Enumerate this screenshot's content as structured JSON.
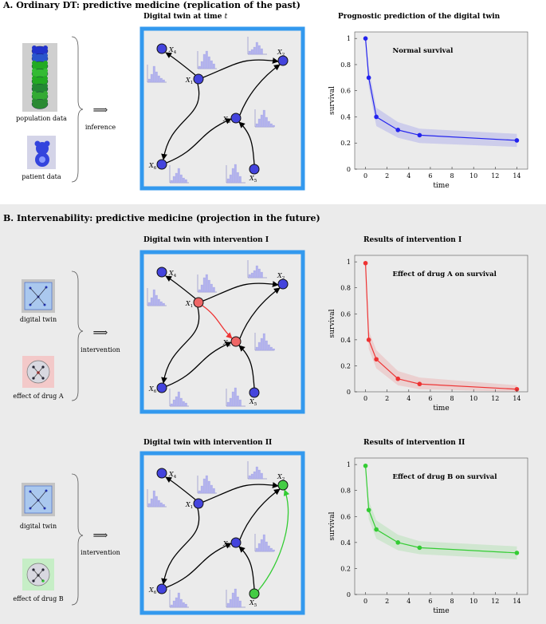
{
  "colors": {
    "panel_border": "#3399ee",
    "node_blue": "#4444dd",
    "node_red": "#ee6666",
    "node_green": "#44cc44",
    "edge_red": "#ee3333",
    "edge_green": "#33cc33",
    "line_blue": "#2222ee",
    "line_red": "#ee3333",
    "line_green": "#33cc33",
    "section_bg": "#ebebeb"
  },
  "sectionA": {
    "heading": "A. Ordinary DT: predictive medicine (replication of the past)",
    "left": {
      "population_label": "population data",
      "patient_label": "patient data",
      "arrow": "⟹",
      "action_label": "inference"
    },
    "network_title": "Digital twin at time ",
    "network_title_var": "t",
    "chart_title": "Prognostic prediction of the digital twin"
  },
  "sectionB": {
    "heading": "B. Intervenability: predictive medicine (projection in the future)",
    "row1": {
      "left": {
        "twin_label": "digital twin",
        "effect_label": "effect of drug A",
        "arrow": "⟹",
        "action_label": "intervention"
      },
      "network_title": "Digital twin with intervention I",
      "chart_title": "Results of intervention I"
    },
    "row2": {
      "left": {
        "twin_label": "digital twin",
        "effect_label": "effect of drug B",
        "arrow": "⟹",
        "action_label": "intervention"
      },
      "network_title": "Digital twin with intervention II",
      "chart_title": "Results of intervention II"
    }
  },
  "network": {
    "nodes": [
      {
        "id": "X1",
        "label": "X",
        "sub": "1"
      },
      {
        "id": "X2",
        "label": "X",
        "sub": "2"
      },
      {
        "id": "X3",
        "label": "X",
        "sub": "3"
      },
      {
        "id": "X4",
        "label": "X",
        "sub": "4"
      },
      {
        "id": "X5",
        "label": "X",
        "sub": "5"
      },
      {
        "id": "X6",
        "label": "X",
        "sub": "6"
      }
    ]
  },
  "chart_data": [
    {
      "type": "line",
      "title": "Normal survival",
      "xlabel": "time",
      "ylabel": "survival",
      "x": [
        0,
        0.3,
        1,
        3,
        5,
        14
      ],
      "values": [
        1.0,
        0.7,
        0.4,
        0.3,
        0.26,
        0.22
      ],
      "band_lower": [
        1.0,
        0.63,
        0.33,
        0.24,
        0.2,
        0.17
      ],
      "band_upper": [
        1.0,
        0.77,
        0.47,
        0.36,
        0.31,
        0.27
      ],
      "xticks": [
        0,
        2,
        4,
        6,
        8,
        10,
        12,
        14
      ],
      "yticks": [
        0,
        0.2,
        0.4,
        0.6,
        0.8,
        1
      ],
      "xlim": [
        -1,
        15
      ],
      "ylim": [
        0,
        1.05
      ],
      "color": "#2222ee"
    },
    {
      "type": "line",
      "title": "Effect of drug A on survival",
      "xlabel": "time",
      "ylabel": "survival",
      "x": [
        0,
        0.3,
        1,
        3,
        5,
        14
      ],
      "values": [
        0.99,
        0.4,
        0.25,
        0.1,
        0.06,
        0.02
      ],
      "band_lower": [
        0.99,
        0.33,
        0.18,
        0.05,
        0.02,
        0.0
      ],
      "band_upper": [
        0.99,
        0.47,
        0.32,
        0.16,
        0.11,
        0.05
      ],
      "xticks": [
        0,
        2,
        4,
        6,
        8,
        10,
        12,
        14
      ],
      "yticks": [
        0,
        0.2,
        0.4,
        0.6,
        0.8,
        1
      ],
      "xlim": [
        -1,
        15
      ],
      "ylim": [
        0,
        1.05
      ],
      "color": "#ee3333"
    },
    {
      "type": "line",
      "title": "Effect of drug B on survival",
      "xlabel": "time",
      "ylabel": "survival",
      "x": [
        0,
        0.3,
        1,
        3,
        5,
        14
      ],
      "values": [
        0.99,
        0.65,
        0.5,
        0.4,
        0.36,
        0.32
      ],
      "band_lower": [
        0.99,
        0.58,
        0.43,
        0.34,
        0.31,
        0.27
      ],
      "band_upper": [
        0.99,
        0.72,
        0.57,
        0.46,
        0.41,
        0.37
      ],
      "xticks": [
        0,
        2,
        4,
        6,
        8,
        10,
        12,
        14
      ],
      "yticks": [
        0,
        0.2,
        0.4,
        0.6,
        0.8,
        1
      ],
      "xlim": [
        -1,
        15
      ],
      "ylim": [
        0,
        1.05
      ],
      "color": "#33cc33"
    }
  ]
}
